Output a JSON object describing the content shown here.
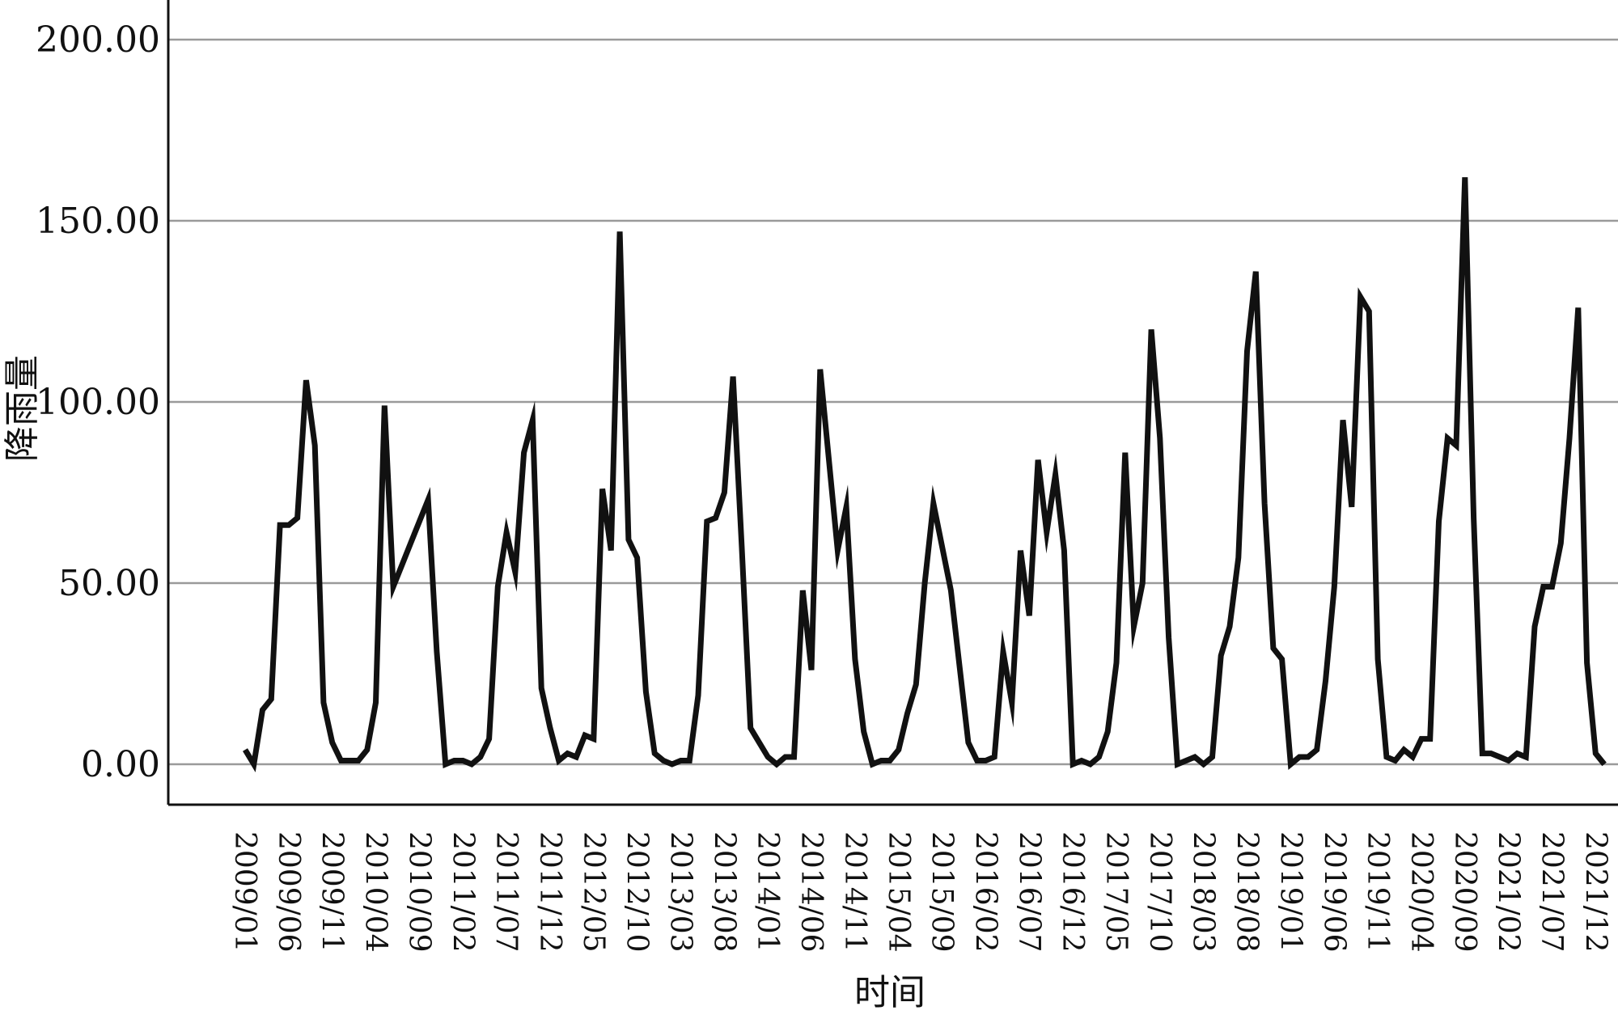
{
  "chart_data": {
    "type": "line",
    "title": "",
    "xlabel": "时间",
    "ylabel": "降雨量",
    "ylim": [
      0,
      200
    ],
    "yticks": [
      "0.00",
      "50.00",
      "100.00",
      "150.00",
      "200.00"
    ],
    "xticks": [
      "2009/01",
      "2009/06",
      "2009/11",
      "2010/04",
      "2010/09",
      "2011/02",
      "2011/07",
      "2011/12",
      "2012/05",
      "2012/10",
      "2013/03",
      "2013/08",
      "2014/01",
      "2014/06",
      "2014/11",
      "2015/04",
      "2015/09",
      "2016/02",
      "2016/07",
      "2016/12",
      "2017/05",
      "2017/10",
      "2018/03",
      "2018/08",
      "2019/01",
      "2019/06",
      "2019/11",
      "2020/04",
      "2020/09",
      "2021/02",
      "2021/07",
      "2021/12"
    ],
    "grid": true,
    "line_color": "#111111",
    "series": [
      {
        "name": "",
        "start": "2009/01",
        "values": [
          4,
          0,
          15,
          18,
          66,
          66,
          68,
          106,
          88,
          17,
          6,
          1,
          1,
          1,
          4,
          17,
          99,
          49,
          55,
          61,
          67,
          73,
          31,
          0,
          1,
          1,
          0,
          2,
          7,
          49,
          64,
          53,
          86,
          95,
          21,
          10,
          1,
          3,
          2,
          8,
          7,
          76,
          59,
          147,
          62,
          57,
          20,
          3,
          1,
          0,
          1,
          1,
          19,
          67,
          68,
          75,
          107,
          60,
          10,
          6,
          2,
          0,
          2,
          2,
          48,
          26,
          109,
          84,
          59,
          71,
          29,
          9,
          0,
          1,
          1,
          4,
          14,
          22,
          50,
          72,
          60,
          48,
          27,
          6,
          1,
          1,
          2,
          31,
          17,
          59,
          41,
          84,
          64,
          80,
          59,
          0,
          1,
          0,
          2,
          9,
          28,
          86,
          38,
          50,
          120,
          90,
          35,
          0,
          1,
          2,
          0,
          2,
          30,
          38,
          57,
          114,
          136,
          72,
          32,
          29,
          0,
          2,
          2,
          4,
          23,
          49,
          95,
          71,
          129,
          125,
          29,
          2,
          1,
          4,
          2,
          7,
          7,
          67,
          90,
          88,
          162,
          68,
          3,
          3,
          2,
          1,
          3,
          2,
          38,
          49,
          49,
          61,
          90,
          126,
          28,
          3,
          0
        ]
      }
    ]
  }
}
